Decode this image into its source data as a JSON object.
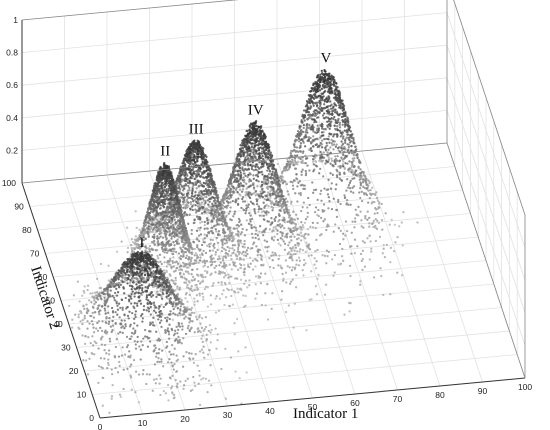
{
  "chart_data": {
    "type": "scatter",
    "title": "",
    "xlabel": "Indicator 1",
    "ylabel": "Indicator 2",
    "zlabel": "",
    "xlim": [
      0,
      100
    ],
    "ylim": [
      0,
      100
    ],
    "zlim": [
      0,
      1
    ],
    "x_ticks": [
      "0",
      "10",
      "20",
      "30",
      "40",
      "50",
      "60",
      "70",
      "80",
      "90",
      "100"
    ],
    "y_ticks": [
      "0",
      "10",
      "20",
      "30",
      "40",
      "50",
      "60",
      "70",
      "80",
      "90",
      "100"
    ],
    "z_ticks": [
      "0.2",
      "0.4",
      "0.6",
      "0.8",
      "1"
    ],
    "grid": true,
    "point_color": "#2a2a2a",
    "clusters": [
      {
        "label": "I",
        "center_x": 15,
        "center_y": 28,
        "spread_x": 7,
        "spread_y": 11,
        "peak_z": 0.56
      },
      {
        "label": "II",
        "center_x": 26,
        "center_y": 58,
        "spread_x": 3.5,
        "spread_y": 6,
        "peak_z": 0.66
      },
      {
        "label": "III",
        "center_x": 34,
        "center_y": 62,
        "spread_x": 4.5,
        "spread_y": 8,
        "peak_z": 0.72
      },
      {
        "label": "IV",
        "center_x": 48,
        "center_y": 62,
        "spread_x": 5,
        "spread_y": 9,
        "peak_z": 0.8
      },
      {
        "label": "V",
        "center_x": 66,
        "center_y": 70,
        "spread_x": 6,
        "spread_y": 10,
        "peak_z": 0.96
      }
    ]
  }
}
